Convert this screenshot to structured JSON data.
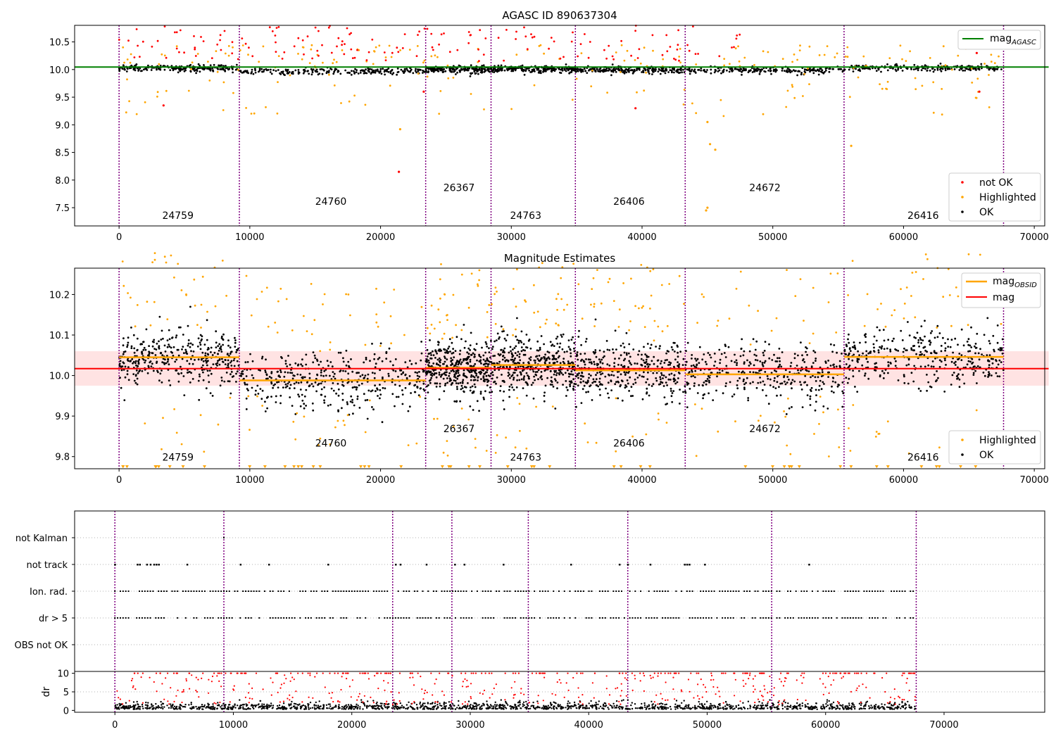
{
  "colors": {
    "ok": "#000000",
    "highlighted": "#ffa500",
    "not_ok": "#ff0000",
    "agasc_line": "#008000",
    "mag_line": "#ff0000",
    "obsid_line": "#ffa500",
    "obs_divider": "#800080",
    "band": "#ffc0c0"
  },
  "chart_data": [
    {
      "type": "scatter",
      "title": "AGASC ID 890637304",
      "xlabel": "",
      "ylabel": "",
      "xlim": [
        -3400,
        70800
      ],
      "ylim": [
        7.17,
        10.8
      ],
      "xticks": [
        "0",
        "10000",
        "20000",
        "30000",
        "40000",
        "50000",
        "60000",
        "70000"
      ],
      "yticks": [
        "7.5",
        "8.0",
        "8.5",
        "9.0",
        "9.5",
        "10.0",
        "10.5"
      ],
      "agasc_mag": 10.045,
      "obs_boundaries": [
        0,
        9200,
        23450,
        28450,
        34900,
        43300,
        55450,
        67650
      ],
      "obsids": [
        {
          "label": "24759",
          "x": 4500,
          "y": 7.3
        },
        {
          "label": "24760",
          "x": 16200,
          "y": 7.55
        },
        {
          "label": "26367",
          "x": 26000,
          "y": 7.8
        },
        {
          "label": "24763",
          "x": 31100,
          "y": 7.3
        },
        {
          "label": "26406",
          "x": 39000,
          "y": 7.55
        },
        {
          "label": "24672",
          "x": 49400,
          "y": 7.8
        },
        {
          "label": "26416",
          "x": 61500,
          "y": 7.3
        }
      ],
      "series": [
        {
          "name": "not OK"
        },
        {
          "name": "Highlighted"
        },
        {
          "name": "OK"
        }
      ],
      "legend_lines": [
        {
          "name": "mag",
          "subscript": "AGASC"
        }
      ],
      "legend_placement": [
        "top-right",
        "bottom-right"
      ]
    },
    {
      "type": "scatter",
      "title": "Magnitude Estimates",
      "xlabel": "",
      "ylabel": "",
      "xlim": [
        -3400,
        70800
      ],
      "ylim": [
        9.77,
        10.265
      ],
      "xticks": [
        "0",
        "10000",
        "20000",
        "30000",
        "40000",
        "50000",
        "60000",
        "70000"
      ],
      "yticks": [
        "9.8",
        "9.9",
        "10.0",
        "10.1",
        "10.2"
      ],
      "mag": 10.017,
      "mag_band": [
        9.975,
        10.06
      ],
      "obsid_mags": [
        10.045,
        9.988,
        10.019,
        10.026,
        10.013,
        10.003,
        10.046
      ],
      "obsid_segments": [
        [
          0,
          9200
        ],
        [
          9200,
          23450
        ],
        [
          23450,
          28450
        ],
        [
          28450,
          34900
        ],
        [
          34900,
          43300
        ],
        [
          43300,
          55450
        ],
        [
          55450,
          67650
        ]
      ],
      "obsids": [
        {
          "label": "24759",
          "x": 4500,
          "y": 9.79
        },
        {
          "label": "24760",
          "x": 16200,
          "y": 9.825
        },
        {
          "label": "26367",
          "x": 26000,
          "y": 9.86
        },
        {
          "label": "24763",
          "x": 31100,
          "y": 9.79
        },
        {
          "label": "26406",
          "x": 39000,
          "y": 9.825
        },
        {
          "label": "24672",
          "x": 49400,
          "y": 9.86
        },
        {
          "label": "26416",
          "x": 61500,
          "y": 9.79
        }
      ],
      "series": [
        {
          "name": "Highlighted"
        },
        {
          "name": "OK"
        }
      ],
      "legend_lines": [
        {
          "name": "mag",
          "subscript": "OBSID"
        },
        {
          "name": "mag",
          "subscript": ""
        }
      ]
    },
    {
      "type": "scatter",
      "title": "",
      "categories": [
        "not Kalman",
        "not track",
        "Ion. rad.",
        "dr > 5",
        "OBS not OK"
      ],
      "xlim": [
        -3400,
        78500
      ]
    },
    {
      "type": "scatter",
      "title": "",
      "ylabel": "dr",
      "xlim": [
        -3400,
        78500
      ],
      "ylim": [
        -0.5,
        10.5
      ],
      "yticks": [
        "0",
        "5",
        "10"
      ],
      "xticks": [
        "0",
        "10000",
        "20000",
        "30000",
        "40000",
        "50000",
        "60000",
        "70000"
      ]
    }
  ]
}
